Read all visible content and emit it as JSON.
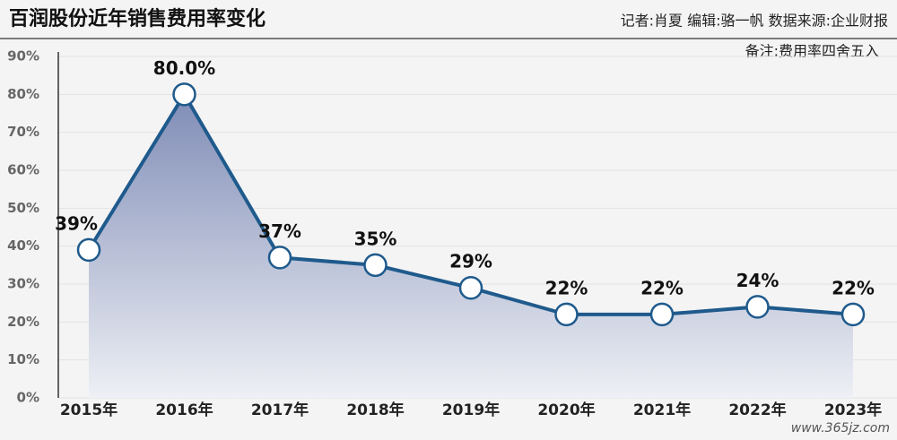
{
  "chart_data": {
    "type": "line",
    "title": "百润股份近年销售费用率变化",
    "credits": "记者:肖夏  编辑:骆一帆  数据来源:企业财报",
    "note": "备注:费用率四舍五入",
    "watermark": "www.365jz.com",
    "categories": [
      "2015年",
      "2016年",
      "2017年",
      "2018年",
      "2019年",
      "2020年",
      "2021年",
      "2022年",
      "2023年"
    ],
    "values": [
      39,
      80,
      37,
      35,
      29,
      22,
      22,
      24,
      22
    ],
    "value_labels": [
      "39%",
      "80.0%",
      "37%",
      "35%",
      "29%",
      "22%",
      "22%",
      "24%",
      "22%"
    ],
    "color": "#1f5a8c",
    "ylim": [
      0,
      90
    ],
    "yticks": [
      {
        "value": 0,
        "label": "0%"
      },
      {
        "value": 10,
        "label": "10%"
      },
      {
        "value": 20,
        "label": "20%"
      },
      {
        "value": 30,
        "label": "30%"
      },
      {
        "value": 40,
        "label": "40%"
      },
      {
        "value": 50,
        "label": "50%"
      },
      {
        "value": 60,
        "label": "60%"
      },
      {
        "value": 70,
        "label": "70%"
      },
      {
        "value": 80,
        "label": "80%"
      },
      {
        "value": 90,
        "label": "90%"
      }
    ],
    "grid": true
  }
}
